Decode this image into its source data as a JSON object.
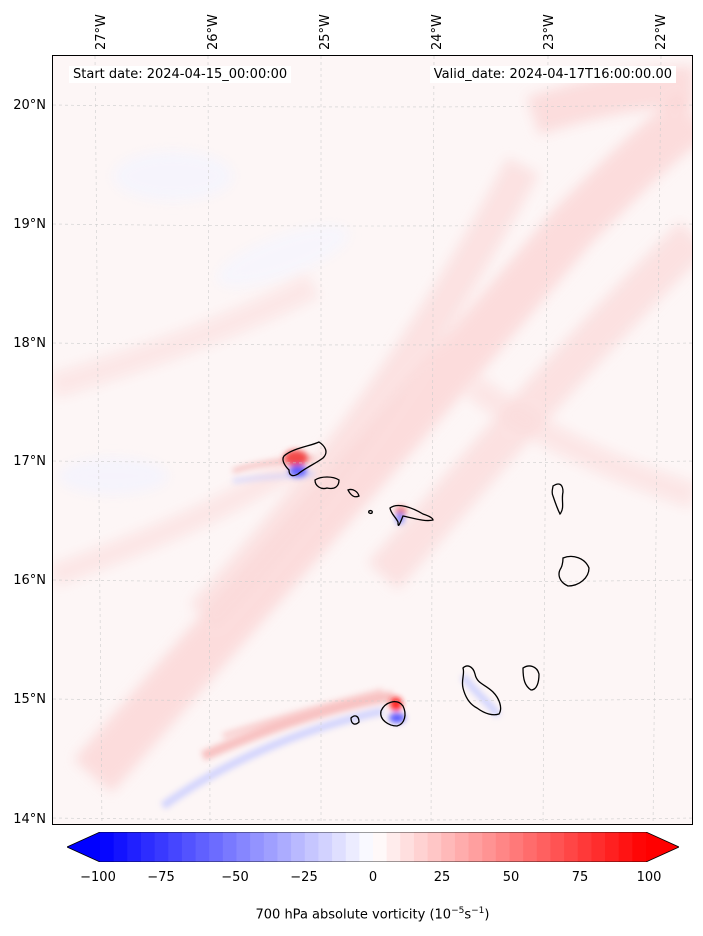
{
  "header": {
    "start_date": "Start date: 2024-04-15_00:00:00",
    "valid_date": "Valid_date: 2024-04-17T16:00:00.00"
  },
  "axes": {
    "longitude_labels": [
      "27°W",
      "26°W",
      "25°W",
      "24°W",
      "23°W",
      "22°W"
    ],
    "latitude_labels": [
      "20°N",
      "19°N",
      "18°N",
      "17°N",
      "16°N",
      "15°N",
      "14°N"
    ]
  },
  "colorbar": {
    "ticks": [
      "−100",
      "−75",
      "−50",
      "−25",
      "0",
      "25",
      "50",
      "75",
      "100"
    ],
    "label_prefix": "700 hPa absolute vorticity (10",
    "label_exp1": "−5",
    "label_mid": "s",
    "label_exp2": "−1",
    "label_suffix": ")",
    "min": -100,
    "max": 100,
    "colormap": "bwr",
    "extend": "both"
  },
  "colors": {
    "negative": "#0000ff",
    "zero": "#ffffff",
    "positive": "#ff0000",
    "coastline": "#000000",
    "gridline": "#cccccc"
  }
}
